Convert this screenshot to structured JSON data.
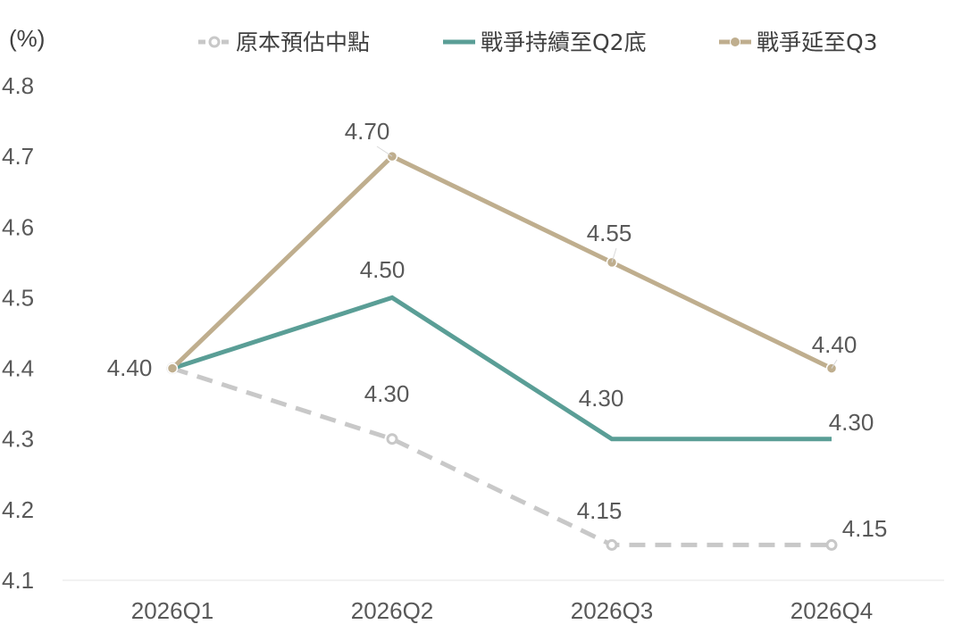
{
  "chart_data": {
    "type": "line",
    "unit_label": "(%)",
    "categories": [
      "2026Q1",
      "2026Q2",
      "2026Q3",
      "2026Q4"
    ],
    "ylim": [
      4.1,
      4.8
    ],
    "y_ticks": [
      "4.1",
      "4.2",
      "4.3",
      "4.4",
      "4.5",
      "4.6",
      "4.7",
      "4.8"
    ],
    "grid": false,
    "legend_position": "top",
    "series": [
      {
        "name": "原本預估中點",
        "values": [
          4.4,
          4.3,
          4.15,
          4.15
        ],
        "labels": [
          "4.40",
          "4.30",
          "4.15",
          "4.15"
        ],
        "color": "#C8C8C8",
        "style": "dashed",
        "markers": true
      },
      {
        "name": "戰爭持續至Q2底",
        "values": [
          4.4,
          4.5,
          4.3,
          4.3
        ],
        "labels": [
          "4.40",
          "4.50",
          "4.30",
          "4.30"
        ],
        "color": "#5A9E96",
        "style": "solid",
        "markers": false
      },
      {
        "name": "戰爭延至Q3",
        "values": [
          4.4,
          4.7,
          4.55,
          4.4
        ],
        "labels": [
          "4.40",
          "4.70",
          "4.55",
          "4.40"
        ],
        "color": "#BFAE8E",
        "style": "solid",
        "markers": true
      }
    ]
  }
}
